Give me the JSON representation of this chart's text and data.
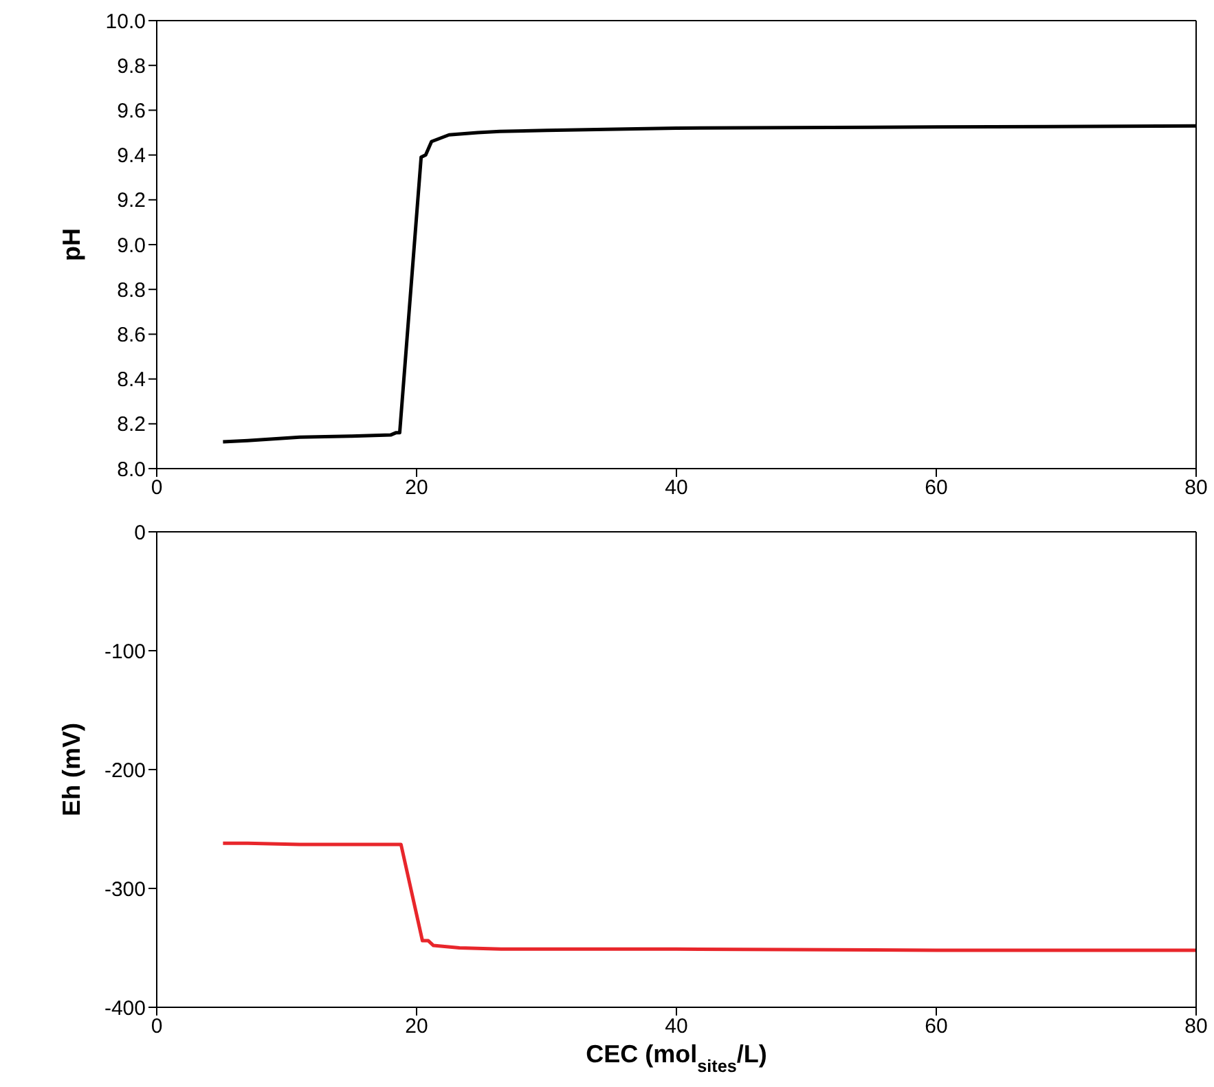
{
  "chart_data": [
    {
      "type": "line",
      "ylabel": "pH",
      "xlim": [
        0,
        80
      ],
      "xticks": [
        0,
        20,
        40,
        60,
        80
      ],
      "ylim": [
        8.0,
        10.0
      ],
      "yticks": [
        {
          "value": 8.0,
          "label": "8.0"
        },
        {
          "value": 8.2,
          "label": "8.2"
        },
        {
          "value": 8.4,
          "label": "8.4"
        },
        {
          "value": 8.6,
          "label": "8.6"
        },
        {
          "value": 8.8,
          "label": "8.8"
        },
        {
          "value": 9.0,
          "label": "9.0"
        },
        {
          "value": 9.2,
          "label": "9.2"
        },
        {
          "value": 9.4,
          "label": "9.4"
        },
        {
          "value": 9.6,
          "label": "9.6"
        },
        {
          "value": 9.8,
          "label": "9.8"
        },
        {
          "value": 10.0,
          "label": "10.0"
        }
      ],
      "marker": "none",
      "line_style": "solid",
      "series": [
        {
          "color": "#000000",
          "x": [
            5.1,
            7,
            11,
            15,
            18,
            18.4,
            18.7,
            20.35,
            20.7,
            21.15,
            21.6,
            22.5,
            24.7,
            26.4,
            30,
            40,
            60,
            80
          ],
          "values": [
            8.12,
            8.125,
            8.14,
            8.145,
            8.15,
            8.16,
            8.16,
            9.39,
            9.4,
            9.46,
            9.47,
            9.49,
            9.5,
            9.505,
            9.51,
            9.52,
            9.525,
            9.53
          ]
        }
      ]
    },
    {
      "type": "line",
      "xlabel": "CEC (mol$_{sites}$/L)",
      "ylabel": "Eh (mV)",
      "xlim": [
        0,
        80
      ],
      "xticks": [
        0,
        20,
        40,
        60,
        80
      ],
      "ylim": [
        -400,
        0
      ],
      "yticks": [
        -400,
        -300,
        -200,
        -100,
        0
      ],
      "marker": "none",
      "line_style": "solid",
      "series": [
        {
          "color": "#e8262b",
          "x": [
            5.1,
            7,
            11,
            15,
            18.5,
            18.8,
            20.45,
            20.9,
            21.3,
            23.3,
            26.5,
            40,
            60,
            80
          ],
          "values": [
            -262,
            -262,
            -263,
            -263,
            -263,
            -263,
            -344,
            -344,
            -348,
            -350,
            -351,
            -351,
            -352,
            -352
          ]
        }
      ]
    }
  ]
}
